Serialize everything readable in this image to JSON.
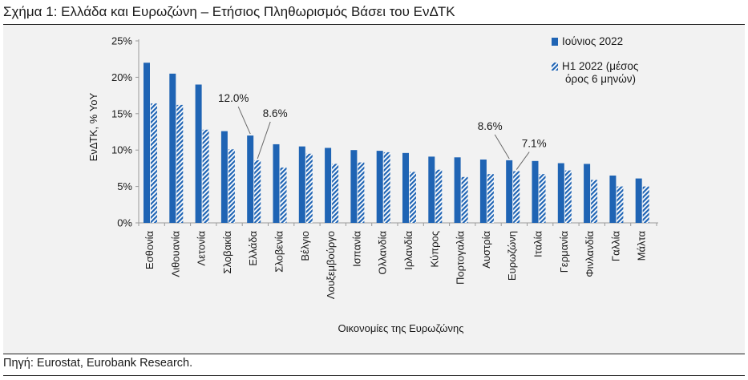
{
  "page": {
    "title": "Σχήμα 1: Ελλάδα και Ευρωζώνη – Ετήσιος Πληθωρισμός Βάσει του ΕνΔΤΚ",
    "source": "Πηγή: Eurostat, Eurobank Research."
  },
  "colors": {
    "bar_solid": "#1f64b4",
    "bar_hatch": "#1f64b4",
    "panel_bg": "#f2f2f2",
    "axis": "#9a9a9a"
  },
  "chart_data": {
    "type": "bar",
    "title": "",
    "xlabel": "Οικονομίες της Ευρωζώνης",
    "ylabel": "ΕνΔΤΚ, % YoY",
    "ylim": [
      0,
      25
    ],
    "yticks": [
      0,
      5,
      10,
      15,
      20,
      25
    ],
    "ytick_labels": [
      "0%",
      "5%",
      "10%",
      "15%",
      "20%",
      "25%"
    ],
    "grid": false,
    "legend_position": "top-right",
    "categories": [
      "Εσθονία",
      "Λιθουανία",
      "Λετονία",
      "Σλοβακία",
      "Ελλάδα",
      "Σλοβενία",
      "Βέλγιο",
      "Λουξεμβούργο",
      "Ισπανία",
      "Ολλανδία",
      "Ιρλανδία",
      "Κύπρος",
      "Πορτογαλία",
      "Αυστρία",
      "Ευρωζώνη",
      "Ιταλία",
      "Γερμανία",
      "Φινλανδία",
      "Γαλλία",
      "Μάλτα"
    ],
    "series": [
      {
        "name": "Ιούνιος 2022",
        "style": "solid",
        "values": [
          22.0,
          20.5,
          19.0,
          12.6,
          12.0,
          10.8,
          10.5,
          10.3,
          10.0,
          9.9,
          9.6,
          9.1,
          9.0,
          8.7,
          8.6,
          8.5,
          8.2,
          8.1,
          6.5,
          6.1
        ]
      },
      {
        "name": "H1 2022 (μέσος όρος 6 μηνών)",
        "style": "hatched",
        "values": [
          16.4,
          16.2,
          12.8,
          10.1,
          8.6,
          7.6,
          9.5,
          8.1,
          8.3,
          9.7,
          7.0,
          7.3,
          6.3,
          6.7,
          7.1,
          6.7,
          7.2,
          5.9,
          5.0,
          5.0
        ]
      }
    ],
    "legend_labels": [
      {
        "text": [
          "Ιούνιος 2022"
        ]
      },
      {
        "text": [
          "H1 2022 (μέσος",
          "όρος 6 μηνών)"
        ]
      }
    ],
    "annotations": [
      {
        "text": "12.0%",
        "category": "Ελλάδα",
        "series": 0,
        "value": 12.0
      },
      {
        "text": "8.6%",
        "category": "Ελλάδα",
        "series": 1,
        "value": 8.6
      },
      {
        "text": "8.6%",
        "category": "Ευρωζώνη",
        "series": 0,
        "value": 8.6
      },
      {
        "text": "7.1%",
        "category": "Ευρωζώνη",
        "series": 1,
        "value": 7.1
      }
    ]
  }
}
